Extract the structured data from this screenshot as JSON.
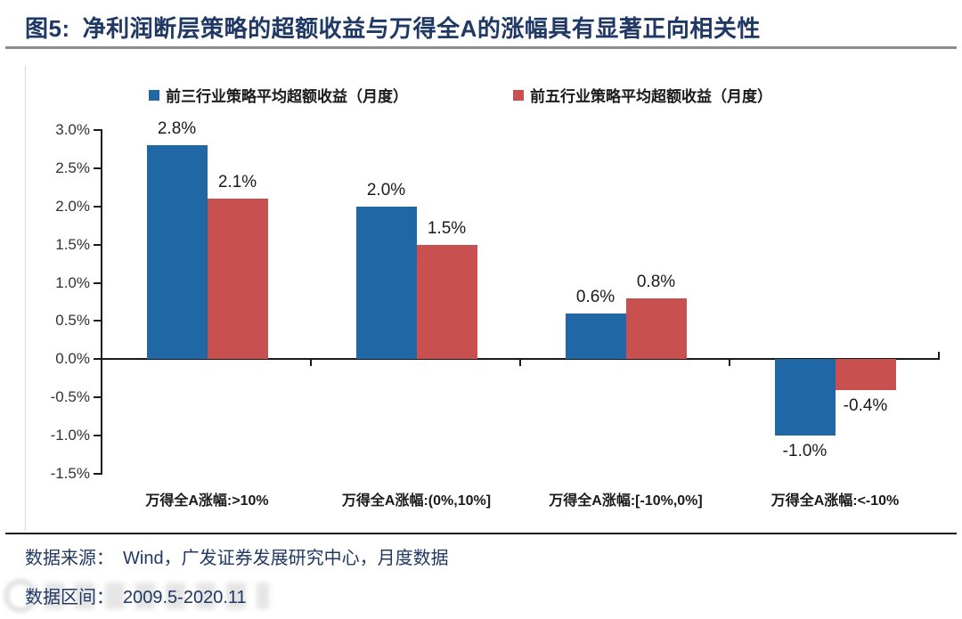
{
  "title": {
    "figure_label": "图5:",
    "text": "净利润断层策略的超额收益与万得全A的涨幅具有显著正向相关性"
  },
  "legend": [
    {
      "label": "前三行业策略平均超额收益（月度）",
      "color": "#2068A5"
    },
    {
      "label": "前五行业策略平均超额收益（月度）",
      "color": "#C8504E"
    }
  ],
  "chart_data": {
    "type": "bar",
    "categories": [
      "万得全A涨幅:>10%",
      "万得全A涨幅:(0%,10%]",
      "万得全A涨幅:[-10%,0%]",
      "万得全A涨幅:<-10%"
    ],
    "series": [
      {
        "name": "前三行业策略平均超额收益（月度）",
        "color": "#2068A5",
        "values": [
          2.8,
          2.0,
          0.6,
          -1.0
        ]
      },
      {
        "name": "前五行业策略平均超额收益（月度）",
        "color": "#C8504E",
        "values": [
          2.1,
          1.5,
          0.8,
          -0.4
        ]
      }
    ],
    "value_labels": [
      [
        "2.8%",
        "2.0%",
        "0.6%",
        "-1.0%"
      ],
      [
        "2.1%",
        "1.5%",
        "0.8%",
        "-0.4%"
      ]
    ],
    "yticks": [
      "3.0%",
      "2.5%",
      "2.0%",
      "1.5%",
      "1.0%",
      "0.5%",
      "0.0%",
      "-0.5%",
      "-1.0%",
      "-1.5%"
    ],
    "ylim": [
      -1.5,
      3.0
    ],
    "ytick_step": 0.5,
    "grid": false,
    "legend_position": "top",
    "title": "",
    "xlabel": "",
    "ylabel": ""
  },
  "footer": {
    "source_label": "数据来源：",
    "source_text": "Wind，广发证券发展研究中心，月度数据",
    "range_label": "数据区间：",
    "range_text": "2009.5-2020.11"
  },
  "colors": {
    "title_text": "#1F3864",
    "axis": "#1A1A1A",
    "top_divider": "#8C8C8C",
    "bottom_divider": "#1A1A1A",
    "blue_series": "#2068A5",
    "red_series": "#C8504E"
  }
}
